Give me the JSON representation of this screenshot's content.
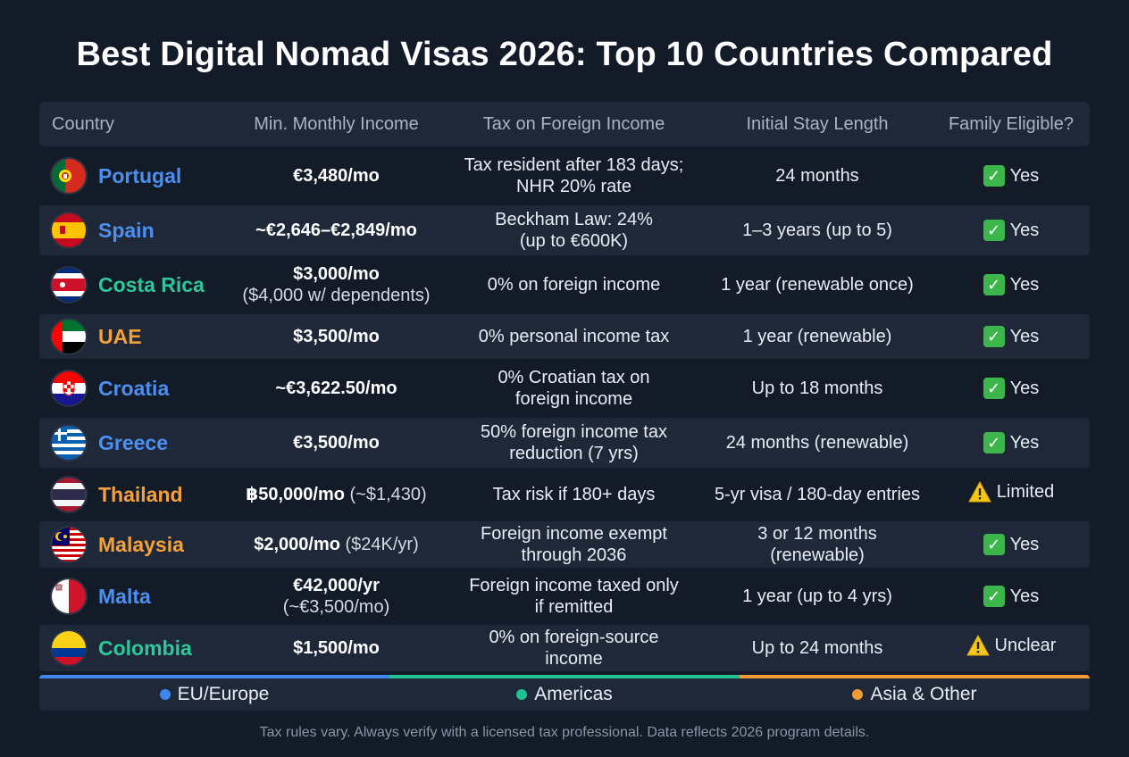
{
  "title": "Best Digital Nomad Visas 2026: Top 10 Countries Compared",
  "headers": {
    "country": "Country",
    "income": "Min. Monthly Income",
    "tax": "Tax on Foreign Income",
    "stay": "Initial Stay Length",
    "family": "Family Eligible?"
  },
  "rows": [
    {
      "country": "Portugal",
      "region": "eu",
      "income_main": "€3,480/mo",
      "income_note": "",
      "tax": [
        "Tax resident after 183 days;",
        "NHR 20% rate"
      ],
      "stay": [
        "24 months"
      ],
      "family": "Yes",
      "family_status": "check"
    },
    {
      "country": "Spain",
      "region": "eu",
      "income_main": "~€2,646–€2,849/mo",
      "income_note": "",
      "tax": [
        "Beckham Law: 24%",
        "(up to €600K)"
      ],
      "stay": [
        "1–3 years (up to 5)"
      ],
      "family": "Yes",
      "family_status": "check"
    },
    {
      "country": "Costa Rica",
      "region": "americas",
      "income_main": "$3,000/mo",
      "income_note": "($4,000 w/ dependents)",
      "tax": [
        "0% on foreign income"
      ],
      "stay": [
        "1 year (renewable once)"
      ],
      "family": "Yes",
      "family_status": "check"
    },
    {
      "country": "UAE",
      "region": "asia",
      "income_main": "$3,500/mo",
      "income_note": "",
      "tax": [
        "0% personal income tax"
      ],
      "stay": [
        "1 year (renewable)"
      ],
      "family": "Yes",
      "family_status": "check"
    },
    {
      "country": "Croatia",
      "region": "eu",
      "income_main": "~€3,622.50/mo",
      "income_note": "",
      "tax": [
        "0% Croatian tax on",
        "foreign income"
      ],
      "stay": [
        "Up to 18 months"
      ],
      "family": "Yes",
      "family_status": "check"
    },
    {
      "country": "Greece",
      "region": "eu",
      "income_main": "€3,500/mo",
      "income_note": "",
      "tax": [
        "50% foreign income tax",
        "reduction (7 yrs)"
      ],
      "stay": [
        "24 months (renewable)"
      ],
      "family": "Yes",
      "family_status": "check"
    },
    {
      "country": "Thailand",
      "region": "asia",
      "income_main": "฿50,000/mo",
      "income_inline": " (~$1,430)",
      "income_note": "",
      "tax": [
        "Tax risk if 180+ days"
      ],
      "stay": [
        "5-yr visa / 180-day entries"
      ],
      "family": "Limited",
      "family_status": "warn"
    },
    {
      "country": "Malaysia",
      "region": "asia",
      "income_main": "$2,000/mo",
      "income_inline": " ($24K/yr)",
      "income_note": "",
      "tax": [
        "Foreign income exempt",
        "through 2036"
      ],
      "stay": [
        "3 or 12 months",
        "(renewable)"
      ],
      "family": "Yes",
      "family_status": "check"
    },
    {
      "country": "Malta",
      "region": "eu",
      "income_main": "€42,000/yr",
      "income_note": "(~€3,500/mo)",
      "tax": [
        "Foreign income taxed only",
        "if remitted"
      ],
      "stay": [
        "1 year (up to 4 yrs)"
      ],
      "family": "Yes",
      "family_status": "check"
    },
    {
      "country": "Colombia",
      "region": "americas",
      "income_main": "$1,500/mo",
      "income_note": "",
      "tax": [
        "0% on foreign-source",
        "income"
      ],
      "stay": [
        "Up to 24 months"
      ],
      "family": "Unclear",
      "family_status": "warn"
    }
  ],
  "legend": [
    {
      "label": "EU/Europe",
      "color": "#3f86ee"
    },
    {
      "label": "Americas",
      "color": "#22c194"
    },
    {
      "label": "Asia & Other",
      "color": "#f29a35"
    }
  ],
  "footer": "Tax rules vary. Always verify with a licensed tax professional. Data reflects 2026 program details."
}
